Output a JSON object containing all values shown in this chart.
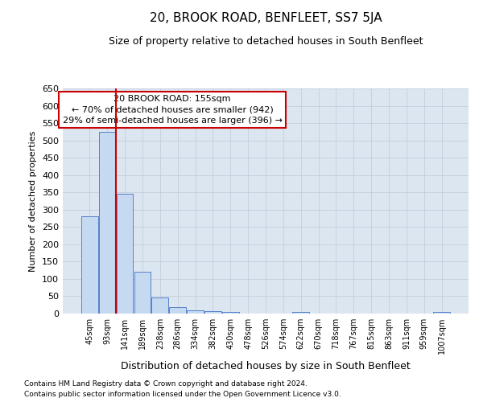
{
  "title": "20, BROOK ROAD, BENFLEET, SS7 5JA",
  "subtitle": "Size of property relative to detached houses in South Benfleet",
  "xlabel": "Distribution of detached houses by size in South Benfleet",
  "ylabel": "Number of detached properties",
  "footnote1": "Contains HM Land Registry data © Crown copyright and database right 2024.",
  "footnote2": "Contains public sector information licensed under the Open Government Licence v3.0.",
  "categories": [
    "45sqm",
    "93sqm",
    "141sqm",
    "189sqm",
    "238sqm",
    "286sqm",
    "334sqm",
    "382sqm",
    "430sqm",
    "478sqm",
    "526sqm",
    "574sqm",
    "622sqm",
    "670sqm",
    "718sqm",
    "767sqm",
    "815sqm",
    "863sqm",
    "911sqm",
    "959sqm",
    "1007sqm"
  ],
  "values": [
    281,
    524,
    346,
    120,
    47,
    18,
    10,
    8,
    5,
    0,
    0,
    0,
    5,
    0,
    0,
    0,
    0,
    0,
    0,
    0,
    4
  ],
  "bar_color": "#c5d9f1",
  "bar_edge_color": "#4472c4",
  "grid_color": "#c0c8d8",
  "bg_color": "#dce6f1",
  "annotation_line1": "20 BROOK ROAD: 155sqm",
  "annotation_line2": "← 70% of detached houses are smaller (942)",
  "annotation_line3": "29% of semi-detached houses are larger (396) →",
  "annotation_box_color": "#ffffff",
  "annotation_box_edge": "#cc0000",
  "vline_color": "#cc0000",
  "vline_x": 1.5,
  "ylim": [
    0,
    650
  ],
  "yticks": [
    0,
    50,
    100,
    150,
    200,
    250,
    300,
    350,
    400,
    450,
    500,
    550,
    600,
    650
  ],
  "title_fontsize": 11,
  "subtitle_fontsize": 9,
  "xlabel_fontsize": 9,
  "ylabel_fontsize": 8,
  "tick_fontsize": 8,
  "xtick_fontsize": 7,
  "footnote_fontsize": 6.5,
  "ann_fontsize": 8
}
